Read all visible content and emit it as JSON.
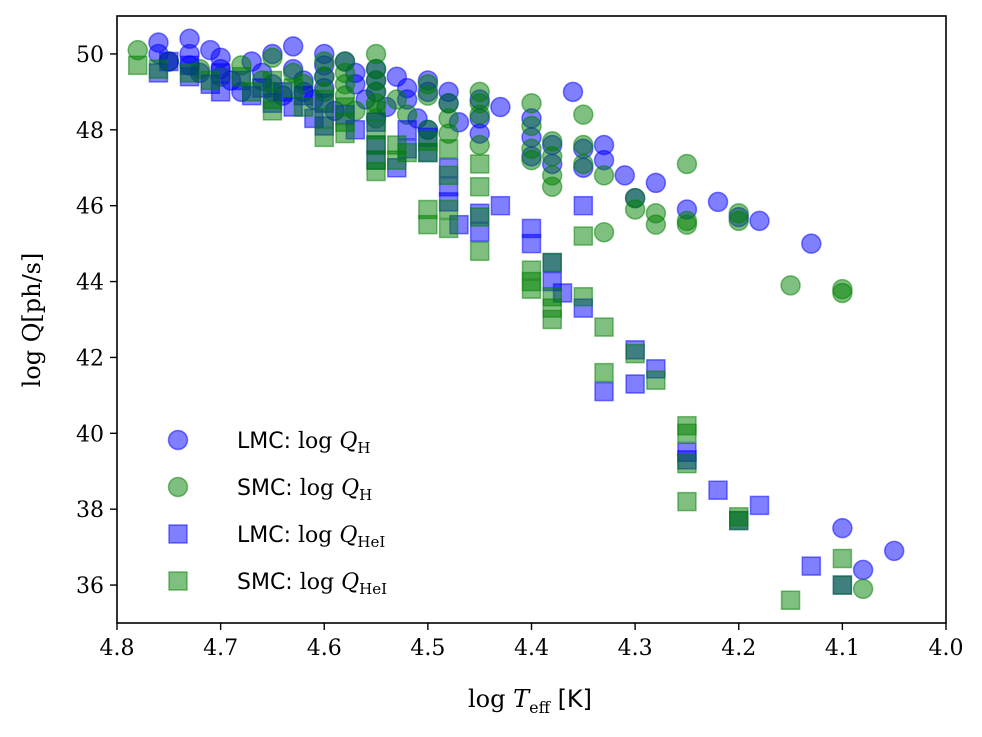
{
  "chart_data": {
    "type": "scatter",
    "xlabel_prefix": "log ",
    "xlabel_var": "T",
    "xlabel_sub": "eff",
    "xlabel_unit": " [K]",
    "ylabel": "log Q[ph/s]",
    "xlim": [
      4.8,
      4.0
    ],
    "ylim": [
      35.0,
      51.0
    ],
    "x_ticks": [
      "4.8",
      "4.7",
      "4.6",
      "4.5",
      "4.4",
      "4.3",
      "4.2",
      "4.1",
      "4.0"
    ],
    "x_tick_values": [
      4.8,
      4.7,
      4.6,
      4.5,
      4.4,
      4.3,
      4.2,
      4.1,
      4.0
    ],
    "y_ticks": [
      "36",
      "38",
      "40",
      "42",
      "44",
      "46",
      "48",
      "50"
    ],
    "y_tick_values": [
      36,
      38,
      40,
      42,
      44,
      46,
      48,
      50
    ],
    "legend_position": "lower-left",
    "series": [
      {
        "name": "LMC: log Q_H",
        "legend_text": "LMC:",
        "legend_math": "log ",
        "legend_var": "Q",
        "legend_sub": "H",
        "marker": "circle",
        "color": "#0000ff",
        "points": [
          [
            4.76,
            50.3
          ],
          [
            4.76,
            50.0
          ],
          [
            4.75,
            49.8
          ],
          [
            4.73,
            50.4
          ],
          [
            4.73,
            50.0
          ],
          [
            4.73,
            49.7
          ],
          [
            4.72,
            49.5
          ],
          [
            4.71,
            50.1
          ],
          [
            4.7,
            49.9
          ],
          [
            4.7,
            49.6
          ],
          [
            4.69,
            49.3
          ],
          [
            4.68,
            49.0
          ],
          [
            4.67,
            49.8
          ],
          [
            4.66,
            49.5
          ],
          [
            4.65,
            50.0
          ],
          [
            4.65,
            49.2
          ],
          [
            4.64,
            48.9
          ],
          [
            4.63,
            50.2
          ],
          [
            4.63,
            49.6
          ],
          [
            4.62,
            49.3
          ],
          [
            4.62,
            49.0
          ],
          [
            4.61,
            48.8
          ],
          [
            4.6,
            50.0
          ],
          [
            4.6,
            49.7
          ],
          [
            4.6,
            49.4
          ],
          [
            4.6,
            49.1
          ],
          [
            4.59,
            48.5
          ],
          [
            4.58,
            49.8
          ],
          [
            4.57,
            49.5
          ],
          [
            4.57,
            49.2
          ],
          [
            4.56,
            48.8
          ],
          [
            4.55,
            49.6
          ],
          [
            4.55,
            49.3
          ],
          [
            4.55,
            49.0
          ],
          [
            4.54,
            48.6
          ],
          [
            4.53,
            49.4
          ],
          [
            4.52,
            49.1
          ],
          [
            4.52,
            48.8
          ],
          [
            4.51,
            48.3
          ],
          [
            4.5,
            49.3
          ],
          [
            4.5,
            49.0
          ],
          [
            4.5,
            48.0
          ],
          [
            4.48,
            49.0
          ],
          [
            4.48,
            48.7
          ],
          [
            4.47,
            48.2
          ],
          [
            4.45,
            48.8
          ],
          [
            4.45,
            48.3
          ],
          [
            4.45,
            47.9
          ],
          [
            4.43,
            48.6
          ],
          [
            4.4,
            48.3
          ],
          [
            4.4,
            47.8
          ],
          [
            4.4,
            47.3
          ],
          [
            4.38,
            47.6
          ],
          [
            4.38,
            47.1
          ],
          [
            4.36,
            49.0
          ],
          [
            4.35,
            47.5
          ],
          [
            4.35,
            47.0
          ],
          [
            4.33,
            47.6
          ],
          [
            4.33,
            47.2
          ],
          [
            4.31,
            46.8
          ],
          [
            4.3,
            46.2
          ],
          [
            4.28,
            46.6
          ],
          [
            4.25,
            45.9
          ],
          [
            4.22,
            46.1
          ],
          [
            4.2,
            45.7
          ],
          [
            4.18,
            45.6
          ],
          [
            4.13,
            45.0
          ],
          [
            4.1,
            37.5
          ],
          [
            4.08,
            36.4
          ],
          [
            4.05,
            36.9
          ]
        ]
      },
      {
        "name": "SMC: log Q_H",
        "legend_text": "SMC:",
        "legend_math": "log ",
        "legend_var": "Q",
        "legend_sub": "H",
        "marker": "circle",
        "color": "#008000",
        "points": [
          [
            4.78,
            50.1
          ],
          [
            4.75,
            49.8
          ],
          [
            4.72,
            49.6
          ],
          [
            4.7,
            49.4
          ],
          [
            4.68,
            49.7
          ],
          [
            4.66,
            49.3
          ],
          [
            4.65,
            49.9
          ],
          [
            4.65,
            49.0
          ],
          [
            4.63,
            49.5
          ],
          [
            4.62,
            49.2
          ],
          [
            4.6,
            49.8
          ],
          [
            4.6,
            49.4
          ],
          [
            4.6,
            49.0
          ],
          [
            4.58,
            49.8
          ],
          [
            4.58,
            49.5
          ],
          [
            4.58,
            49.2
          ],
          [
            4.58,
            48.9
          ],
          [
            4.57,
            48.5
          ],
          [
            4.55,
            50.0
          ],
          [
            4.55,
            49.6
          ],
          [
            4.55,
            49.3
          ],
          [
            4.55,
            49.0
          ],
          [
            4.55,
            48.7
          ],
          [
            4.55,
            48.3
          ],
          [
            4.53,
            48.8
          ],
          [
            4.52,
            48.4
          ],
          [
            4.5,
            49.2
          ],
          [
            4.5,
            48.9
          ],
          [
            4.5,
            48.0
          ],
          [
            4.48,
            48.7
          ],
          [
            4.48,
            48.3
          ],
          [
            4.48,
            47.9
          ],
          [
            4.45,
            49.0
          ],
          [
            4.45,
            48.7
          ],
          [
            4.45,
            48.4
          ],
          [
            4.45,
            47.6
          ],
          [
            4.4,
            48.7
          ],
          [
            4.4,
            48.1
          ],
          [
            4.4,
            47.5
          ],
          [
            4.4,
            47.2
          ],
          [
            4.38,
            47.7
          ],
          [
            4.38,
            47.3
          ],
          [
            4.38,
            46.8
          ],
          [
            4.38,
            46.5
          ],
          [
            4.35,
            48.4
          ],
          [
            4.35,
            47.6
          ],
          [
            4.35,
            47.1
          ],
          [
            4.33,
            46.8
          ],
          [
            4.33,
            45.3
          ],
          [
            4.3,
            46.2
          ],
          [
            4.3,
            45.9
          ],
          [
            4.28,
            45.8
          ],
          [
            4.28,
            45.5
          ],
          [
            4.25,
            47.1
          ],
          [
            4.25,
            45.6
          ],
          [
            4.25,
            45.5
          ],
          [
            4.2,
            45.8
          ],
          [
            4.2,
            45.6
          ],
          [
            4.15,
            43.9
          ],
          [
            4.1,
            43.8
          ],
          [
            4.1,
            43.7
          ],
          [
            4.08,
            35.9
          ]
        ]
      },
      {
        "name": "LMC: log Q_HeI",
        "legend_text": "LMC:",
        "legend_math": "log ",
        "legend_var": "Q",
        "legend_sub": "HeI",
        "marker": "square",
        "color": "#0000ff",
        "points": [
          [
            4.76,
            49.5
          ],
          [
            4.75,
            49.8
          ],
          [
            4.73,
            49.4
          ],
          [
            4.73,
            49.7
          ],
          [
            4.71,
            49.2
          ],
          [
            4.7,
            49.5
          ],
          [
            4.7,
            49.0
          ],
          [
            4.68,
            49.3
          ],
          [
            4.67,
            48.9
          ],
          [
            4.66,
            49.1
          ],
          [
            4.65,
            48.7
          ],
          [
            4.64,
            49.0
          ],
          [
            4.63,
            48.6
          ],
          [
            4.62,
            48.9
          ],
          [
            4.61,
            48.3
          ],
          [
            4.6,
            48.7
          ],
          [
            4.6,
            48.1
          ],
          [
            4.58,
            48.4
          ],
          [
            4.57,
            48.0
          ],
          [
            4.55,
            48.2
          ],
          [
            4.55,
            47.6
          ],
          [
            4.55,
            47.2
          ],
          [
            4.53,
            47.0
          ],
          [
            4.52,
            48.0
          ],
          [
            4.52,
            47.5
          ],
          [
            4.5,
            47.8
          ],
          [
            4.5,
            47.4
          ],
          [
            4.48,
            47.0
          ],
          [
            4.48,
            46.5
          ],
          [
            4.48,
            46.1
          ],
          [
            4.47,
            45.5
          ],
          [
            4.45,
            45.8
          ],
          [
            4.45,
            45.3
          ],
          [
            4.43,
            46.0
          ],
          [
            4.4,
            45.4
          ],
          [
            4.4,
            45.0
          ],
          [
            4.38,
            44.5
          ],
          [
            4.38,
            44.0
          ],
          [
            4.37,
            43.7
          ],
          [
            4.35,
            43.3
          ],
          [
            4.35,
            46.0
          ],
          [
            4.33,
            41.1
          ],
          [
            4.3,
            42.2
          ],
          [
            4.3,
            41.3
          ],
          [
            4.28,
            41.7
          ],
          [
            4.25,
            39.5
          ],
          [
            4.25,
            39.3
          ],
          [
            4.22,
            38.5
          ],
          [
            4.2,
            37.7
          ],
          [
            4.18,
            38.1
          ],
          [
            4.13,
            36.5
          ],
          [
            4.1,
            36.0
          ]
        ]
      },
      {
        "name": "SMC: log Q_HeI",
        "legend_text": "SMC:",
        "legend_math": "log ",
        "legend_var": "Q",
        "legend_sub": "HeI",
        "marker": "square",
        "color": "#008000",
        "points": [
          [
            4.78,
            49.7
          ],
          [
            4.76,
            49.6
          ],
          [
            4.73,
            49.5
          ],
          [
            4.71,
            49.3
          ],
          [
            4.68,
            49.4
          ],
          [
            4.67,
            49.0
          ],
          [
            4.65,
            49.3
          ],
          [
            4.65,
            48.8
          ],
          [
            4.65,
            48.5
          ],
          [
            4.63,
            49.1
          ],
          [
            4.62,
            48.6
          ],
          [
            4.6,
            48.8
          ],
          [
            4.6,
            48.3
          ],
          [
            4.6,
            47.8
          ],
          [
            4.58,
            48.6
          ],
          [
            4.58,
            48.2
          ],
          [
            4.58,
            47.9
          ],
          [
            4.55,
            48.5
          ],
          [
            4.55,
            48.0
          ],
          [
            4.55,
            47.6
          ],
          [
            4.55,
            47.2
          ],
          [
            4.55,
            46.9
          ],
          [
            4.53,
            47.6
          ],
          [
            4.53,
            47.2
          ],
          [
            4.52,
            47.4
          ],
          [
            4.5,
            47.7
          ],
          [
            4.5,
            47.4
          ],
          [
            4.5,
            45.9
          ],
          [
            4.5,
            45.5
          ],
          [
            4.48,
            47.5
          ],
          [
            4.48,
            46.8
          ],
          [
            4.48,
            45.9
          ],
          [
            4.48,
            45.4
          ],
          [
            4.45,
            47.1
          ],
          [
            4.45,
            46.5
          ],
          [
            4.45,
            45.7
          ],
          [
            4.45,
            44.8
          ],
          [
            4.4,
            44.3
          ],
          [
            4.4,
            43.8
          ],
          [
            4.4,
            44.0
          ],
          [
            4.38,
            44.5
          ],
          [
            4.38,
            43.6
          ],
          [
            4.38,
            43.0
          ],
          [
            4.38,
            43.3
          ],
          [
            4.35,
            43.6
          ],
          [
            4.35,
            45.2
          ],
          [
            4.33,
            42.8
          ],
          [
            4.33,
            41.6
          ],
          [
            4.3,
            42.1
          ],
          [
            4.28,
            41.4
          ],
          [
            4.25,
            40.2
          ],
          [
            4.25,
            40.0
          ],
          [
            4.25,
            39.2
          ],
          [
            4.25,
            38.2
          ],
          [
            4.2,
            37.8
          ],
          [
            4.2,
            37.7
          ],
          [
            4.15,
            35.6
          ],
          [
            4.1,
            36.7
          ],
          [
            4.1,
            36.0
          ]
        ]
      }
    ]
  }
}
